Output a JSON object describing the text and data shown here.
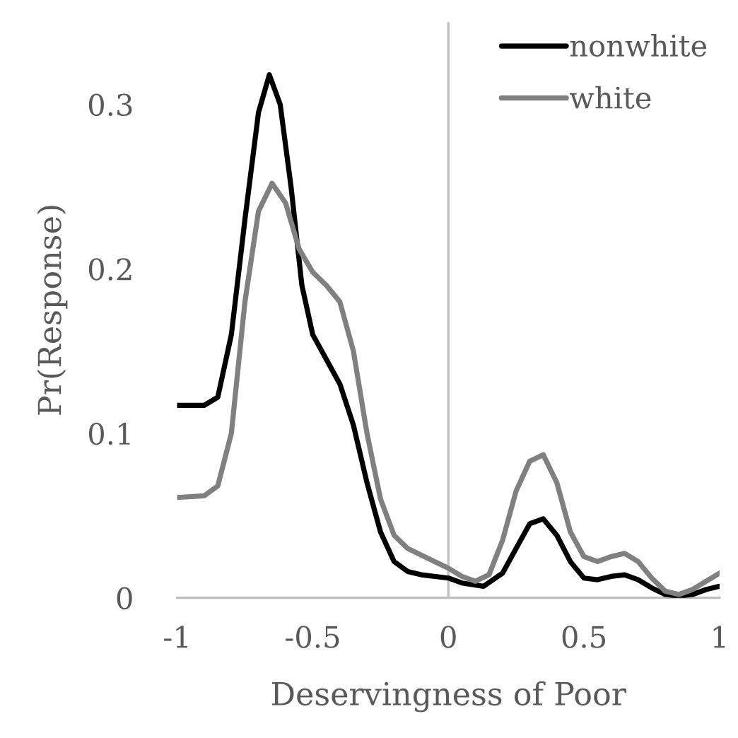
{
  "chart_data": {
    "type": "line",
    "xlabel": "Deservingness of Poor",
    "ylabel": "Pr(Response)",
    "xlim": [
      -1,
      1
    ],
    "ylim": [
      0,
      0.35
    ],
    "xticks": [
      -1,
      -0.5,
      0,
      0.5,
      1
    ],
    "yticks": [
      0,
      0.1,
      0.2,
      0.3
    ],
    "grid": false,
    "legend": "top right",
    "marker": "none",
    "line_style": "solid",
    "ref_lines": [
      {
        "axis": "x",
        "value": 0,
        "color": "#bfbfbf"
      }
    ],
    "series": [
      {
        "name": "nonwhite",
        "color": "#000000",
        "x": [
          -1,
          -0.9,
          -0.85,
          -0.8,
          -0.75,
          -0.7,
          -0.66,
          -0.62,
          -0.58,
          -0.54,
          -0.5,
          -0.45,
          -0.4,
          -0.35,
          -0.3,
          -0.25,
          -0.2,
          -0.15,
          -0.1,
          0,
          0.05,
          0.13,
          0.2,
          0.25,
          0.3,
          0.35,
          0.4,
          0.45,
          0.5,
          0.55,
          0.6,
          0.65,
          0.7,
          0.75,
          0.8,
          0.85,
          0.9,
          0.95,
          1
        ],
        "values": [
          0.117,
          0.117,
          0.122,
          0.16,
          0.23,
          0.295,
          0.318,
          0.3,
          0.25,
          0.19,
          0.16,
          0.145,
          0.13,
          0.105,
          0.07,
          0.04,
          0.022,
          0.016,
          0.014,
          0.012,
          0.009,
          0.007,
          0.015,
          0.03,
          0.045,
          0.048,
          0.038,
          0.022,
          0.012,
          0.011,
          0.013,
          0.014,
          0.011,
          0.006,
          0.002,
          0.001,
          0.002,
          0.005,
          0.007
        ]
      },
      {
        "name": "white",
        "color": "#808080",
        "x": [
          -1,
          -0.9,
          -0.85,
          -0.8,
          -0.75,
          -0.7,
          -0.65,
          -0.6,
          -0.55,
          -0.5,
          -0.45,
          -0.4,
          -0.35,
          -0.3,
          -0.25,
          -0.2,
          -0.15,
          -0.1,
          -0.05,
          0,
          0.05,
          0.1,
          0.15,
          0.2,
          0.25,
          0.3,
          0.35,
          0.4,
          0.45,
          0.5,
          0.55,
          0.6,
          0.65,
          0.7,
          0.75,
          0.8,
          0.85,
          0.9,
          0.95,
          1
        ],
        "values": [
          0.061,
          0.062,
          0.068,
          0.1,
          0.18,
          0.235,
          0.252,
          0.24,
          0.212,
          0.198,
          0.19,
          0.18,
          0.15,
          0.1,
          0.06,
          0.038,
          0.03,
          0.026,
          0.022,
          0.018,
          0.013,
          0.01,
          0.014,
          0.035,
          0.065,
          0.083,
          0.087,
          0.07,
          0.04,
          0.025,
          0.022,
          0.025,
          0.027,
          0.022,
          0.012,
          0.004,
          0.002,
          0.005,
          0.01,
          0.015
        ]
      }
    ]
  }
}
